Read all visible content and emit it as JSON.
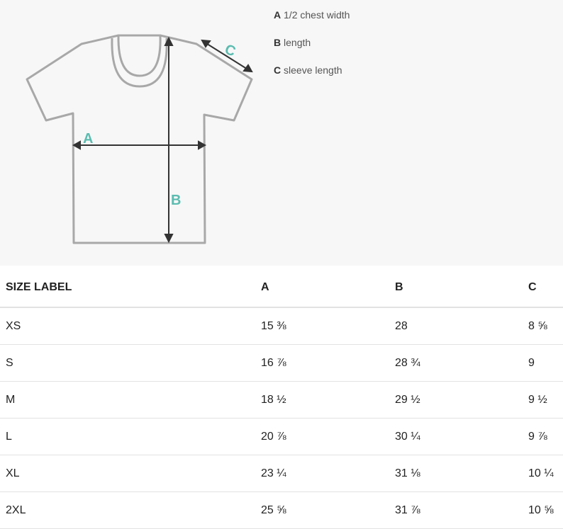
{
  "legend": [
    {
      "key": "A",
      "text": "1/2 chest width"
    },
    {
      "key": "B",
      "text": "length"
    },
    {
      "key": "C",
      "text": "sleeve length"
    }
  ],
  "table": {
    "headers": [
      "SIZE LABEL",
      "A",
      "B",
      "C"
    ],
    "rows": [
      [
        "XS",
        "15 ⅜",
        "28",
        "8 ⅝"
      ],
      [
        "S",
        "16 ⅞",
        "28 ¾",
        "9"
      ],
      [
        "M",
        "18 ½",
        "29 ½",
        "9 ½"
      ],
      [
        "L",
        "20 ⅞",
        "30 ¼",
        "9 ⅞"
      ],
      [
        "XL",
        "23 ¼",
        "31 ⅛",
        "10 ¼"
      ],
      [
        "2XL",
        "25 ⅝",
        "31 ⅞",
        "10 ⅝"
      ]
    ]
  }
}
